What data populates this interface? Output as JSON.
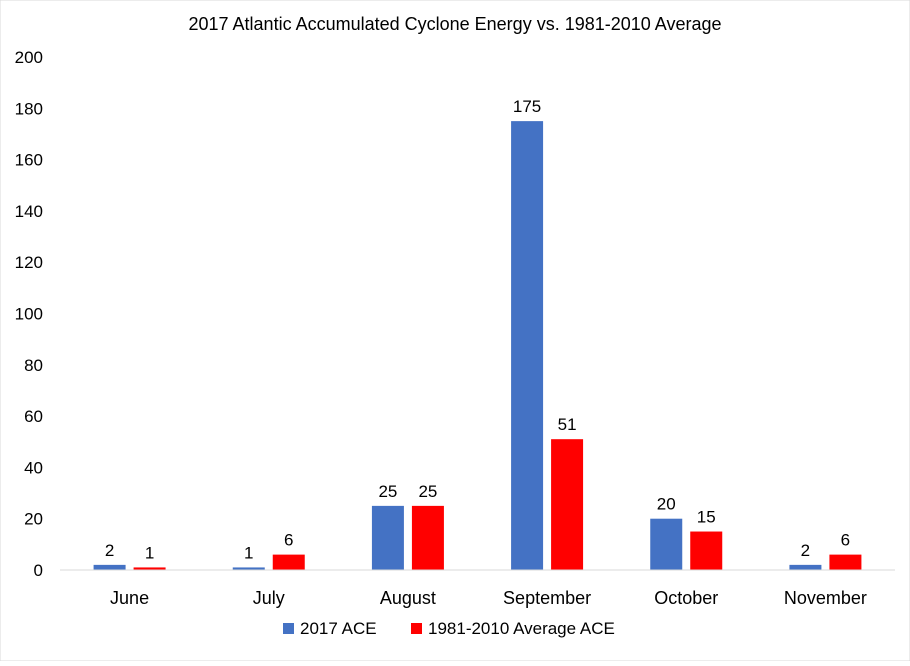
{
  "chart_data": {
    "type": "bar",
    "title": "2017 Atlantic Accumulated Cyclone Energy vs. 1981-2010 Average",
    "xlabel": "",
    "ylabel": "",
    "ylim": [
      0,
      200
    ],
    "yticks": [
      0,
      20,
      40,
      60,
      80,
      100,
      120,
      140,
      160,
      180,
      200
    ],
    "grid": false,
    "legend_position": "bottom",
    "categories": [
      "June",
      "July",
      "August",
      "September",
      "October",
      "November"
    ],
    "series": [
      {
        "name": "2017 ACE",
        "color": "#4472C4",
        "values": [
          2,
          1,
          25,
          175,
          20,
          2
        ]
      },
      {
        "name": "1981-2010 Average ACE",
        "color": "#FF0000",
        "values": [
          1,
          6,
          25,
          51,
          15,
          6
        ]
      }
    ]
  }
}
